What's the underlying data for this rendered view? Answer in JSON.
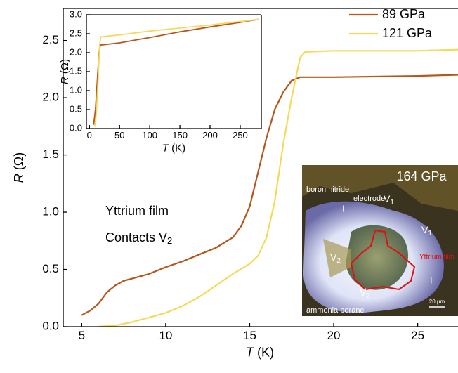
{
  "chart_data": [
    {
      "type": "line",
      "x_label": {
        "symbol": "T",
        "unit": "(K)"
      },
      "y_label": {
        "symbol": "R",
        "unit": "(Ω)"
      },
      "xlim": [
        3.9,
        27.4
      ],
      "ylim": [
        0,
        2.78
      ],
      "xticks": [
        5,
        10,
        15,
        20,
        25
      ],
      "yticks": [
        {
          "value": 0,
          "label": "0.0"
        },
        {
          "value": 0.5,
          "label": "0.5"
        },
        {
          "value": 1,
          "label": "1.0"
        },
        {
          "value": 1.5,
          "label": "1.5"
        },
        {
          "value": 2,
          "label": "2.0"
        },
        {
          "value": 2.5,
          "label": "2.5"
        }
      ],
      "legend": "top-right",
      "annotations": [
        {
          "text": "Yttrium  film"
        },
        {
          "text": "Contacts V",
          "sub": "2"
        }
      ],
      "series": [
        {
          "name": "89 GPa",
          "color": "#b5571d",
          "x": [
            5,
            5.5,
            6,
            6.5,
            7,
            7.5,
            8,
            9,
            10,
            11,
            12,
            13,
            14,
            14.5,
            15,
            15.5,
            16,
            16.5,
            17,
            17.5,
            18,
            20,
            25,
            27.4
          ],
          "values": [
            0.1,
            0.14,
            0.2,
            0.3,
            0.36,
            0.4,
            0.42,
            0.46,
            0.52,
            0.57,
            0.63,
            0.69,
            0.78,
            0.88,
            1.05,
            1.35,
            1.65,
            1.9,
            2.05,
            2.15,
            2.18,
            2.18,
            2.19,
            2.2
          ]
        },
        {
          "name": "121 GPa",
          "color": "#f7d95a",
          "x": [
            6,
            7,
            8,
            9,
            10,
            11,
            12,
            13,
            14,
            15,
            15.5,
            16,
            16.5,
            17,
            17.5,
            18,
            18.3,
            20,
            25,
            27.4
          ],
          "values": [
            0,
            0.01,
            0.04,
            0.08,
            0.12,
            0.18,
            0.26,
            0.36,
            0.46,
            0.55,
            0.62,
            0.78,
            1.1,
            1.6,
            2.0,
            2.35,
            2.4,
            2.41,
            2.41,
            2.42
          ]
        }
      ]
    },
    {
      "type": "line",
      "x_label": {
        "symbol": "T",
        "unit": "(K)"
      },
      "y_label": {
        "symbol": "R",
        "unit": "(Ω)"
      },
      "xlim": [
        -5,
        285
      ],
      "ylim": [
        0,
        3.0
      ],
      "xticks": [
        0,
        50,
        100,
        150,
        200,
        250
      ],
      "yticks": [
        {
          "value": 0,
          "label": "0.0"
        },
        {
          "value": 0.5,
          "label": "0.5"
        },
        {
          "value": 1,
          "label": "1.0"
        },
        {
          "value": 1.5,
          "label": "1.5"
        },
        {
          "value": 2,
          "label": "2.0"
        },
        {
          "value": 2.5,
          "label": "2.5"
        },
        {
          "value": 3,
          "label": "3.0"
        }
      ],
      "series": [
        {
          "name": "89 GPa",
          "color": "#b5571d",
          "x": [
            7,
            10,
            14,
            16,
            18,
            50,
            100,
            150,
            200,
            250,
            280
          ],
          "values": [
            0.1,
            0.5,
            1.5,
            2.0,
            2.2,
            2.26,
            2.4,
            2.55,
            2.68,
            2.8,
            2.88
          ]
        },
        {
          "name": "121 GPa",
          "color": "#f7d95a",
          "x": [
            9,
            12,
            15,
            17,
            19,
            50,
            100,
            150,
            200,
            250,
            280
          ],
          "values": [
            0.05,
            0.5,
            1.5,
            2.2,
            2.42,
            2.47,
            2.57,
            2.65,
            2.73,
            2.82,
            2.88
          ]
        }
      ]
    }
  ],
  "photo": {
    "pressure": "164 GPa",
    "boron_nitride": "boron nitride",
    "electrode": "electrode",
    "v1_top": {
      "text": "V",
      "sub": "1"
    },
    "v1_right": {
      "text": "V",
      "sub": "1"
    },
    "v2_left": {
      "text": "V",
      "sub": "2"
    },
    "v2_bottom": {
      "text": "V",
      "sub": "2"
    },
    "film": "Yttrium film",
    "i_top": "I",
    "i_right": "I",
    "ammonia": "ammonia borane",
    "scale": "20 μm"
  }
}
